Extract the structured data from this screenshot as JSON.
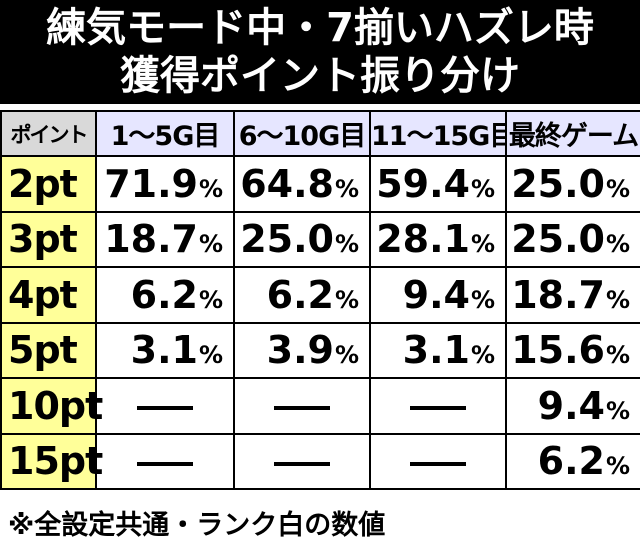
{
  "title": {
    "line1": "練気モード中・7揃いハズレ時",
    "line2": "獲得ポイント振り分け"
  },
  "table": {
    "corner_label": "ポイント",
    "columns": [
      "1～5G目",
      "6～10G目",
      "11～15G目",
      "最終ゲーム"
    ],
    "percent_symbol": "%",
    "rows": [
      {
        "label": "2pt",
        "values": [
          "71.9",
          "64.8",
          "59.4",
          "25.0"
        ]
      },
      {
        "label": "3pt",
        "values": [
          "18.7",
          "25.0",
          "28.1",
          "25.0"
        ]
      },
      {
        "label": "4pt",
        "values": [
          "6.2",
          "6.2",
          "9.4",
          "18.7"
        ]
      },
      {
        "label": "5pt",
        "values": [
          "3.1",
          "3.9",
          "3.1",
          "15.6"
        ]
      },
      {
        "label": "10pt",
        "values": [
          null,
          null,
          null,
          "9.4"
        ]
      },
      {
        "label": "15pt",
        "values": [
          null,
          null,
          null,
          "6.2"
        ]
      }
    ]
  },
  "footnote": "※全設定共通・ランク白の数値",
  "colors": {
    "title_bg": "#000000",
    "header_bg": "#e6e6ff",
    "corner_bg": "#d9d9d9",
    "rowhead_bg": "#ffff99"
  }
}
